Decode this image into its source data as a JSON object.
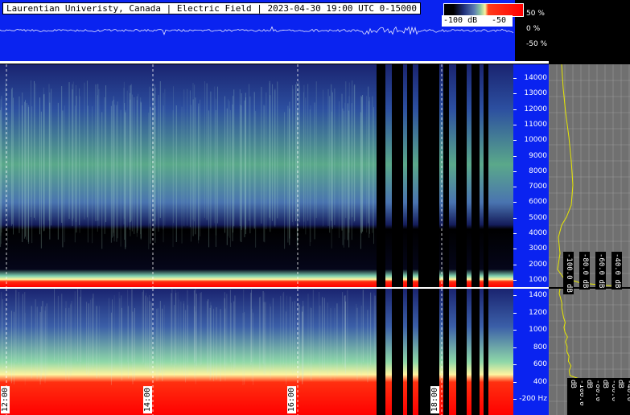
{
  "title": "Laurentian Univeristy, Canada | Electric Field | 2023-04-30 19:00 UTC 0-15000",
  "colorbar": {
    "label_left": "-100 dB",
    "label_right": "-50"
  },
  "waveform_scale": [
    "50 %",
    "0 %",
    "-50 %"
  ],
  "freq_ticks_top": [
    "14000",
    "13000",
    "12000",
    "11000",
    "10000",
    "9000",
    "8000",
    "7000",
    "6000",
    "5000",
    "4000",
    "3000",
    "2000",
    "1000"
  ],
  "freq_ticks_bottom": [
    "1400",
    "1200",
    "1000",
    "800",
    "600",
    "400",
    "-200 Hz"
  ],
  "time_labels": [
    "12:00",
    "14:00",
    "16:00",
    "18:00"
  ],
  "psd_db_labels": [
    "-100.0 dB",
    "-80.0 dB",
    "-60.0 dB",
    "-40.0 dB"
  ],
  "colors": {
    "panel_blue": "#0a23f0",
    "psd_bg": "#707070",
    "psd_curve": "#e8e800",
    "grid": "#9a9a9a"
  }
}
